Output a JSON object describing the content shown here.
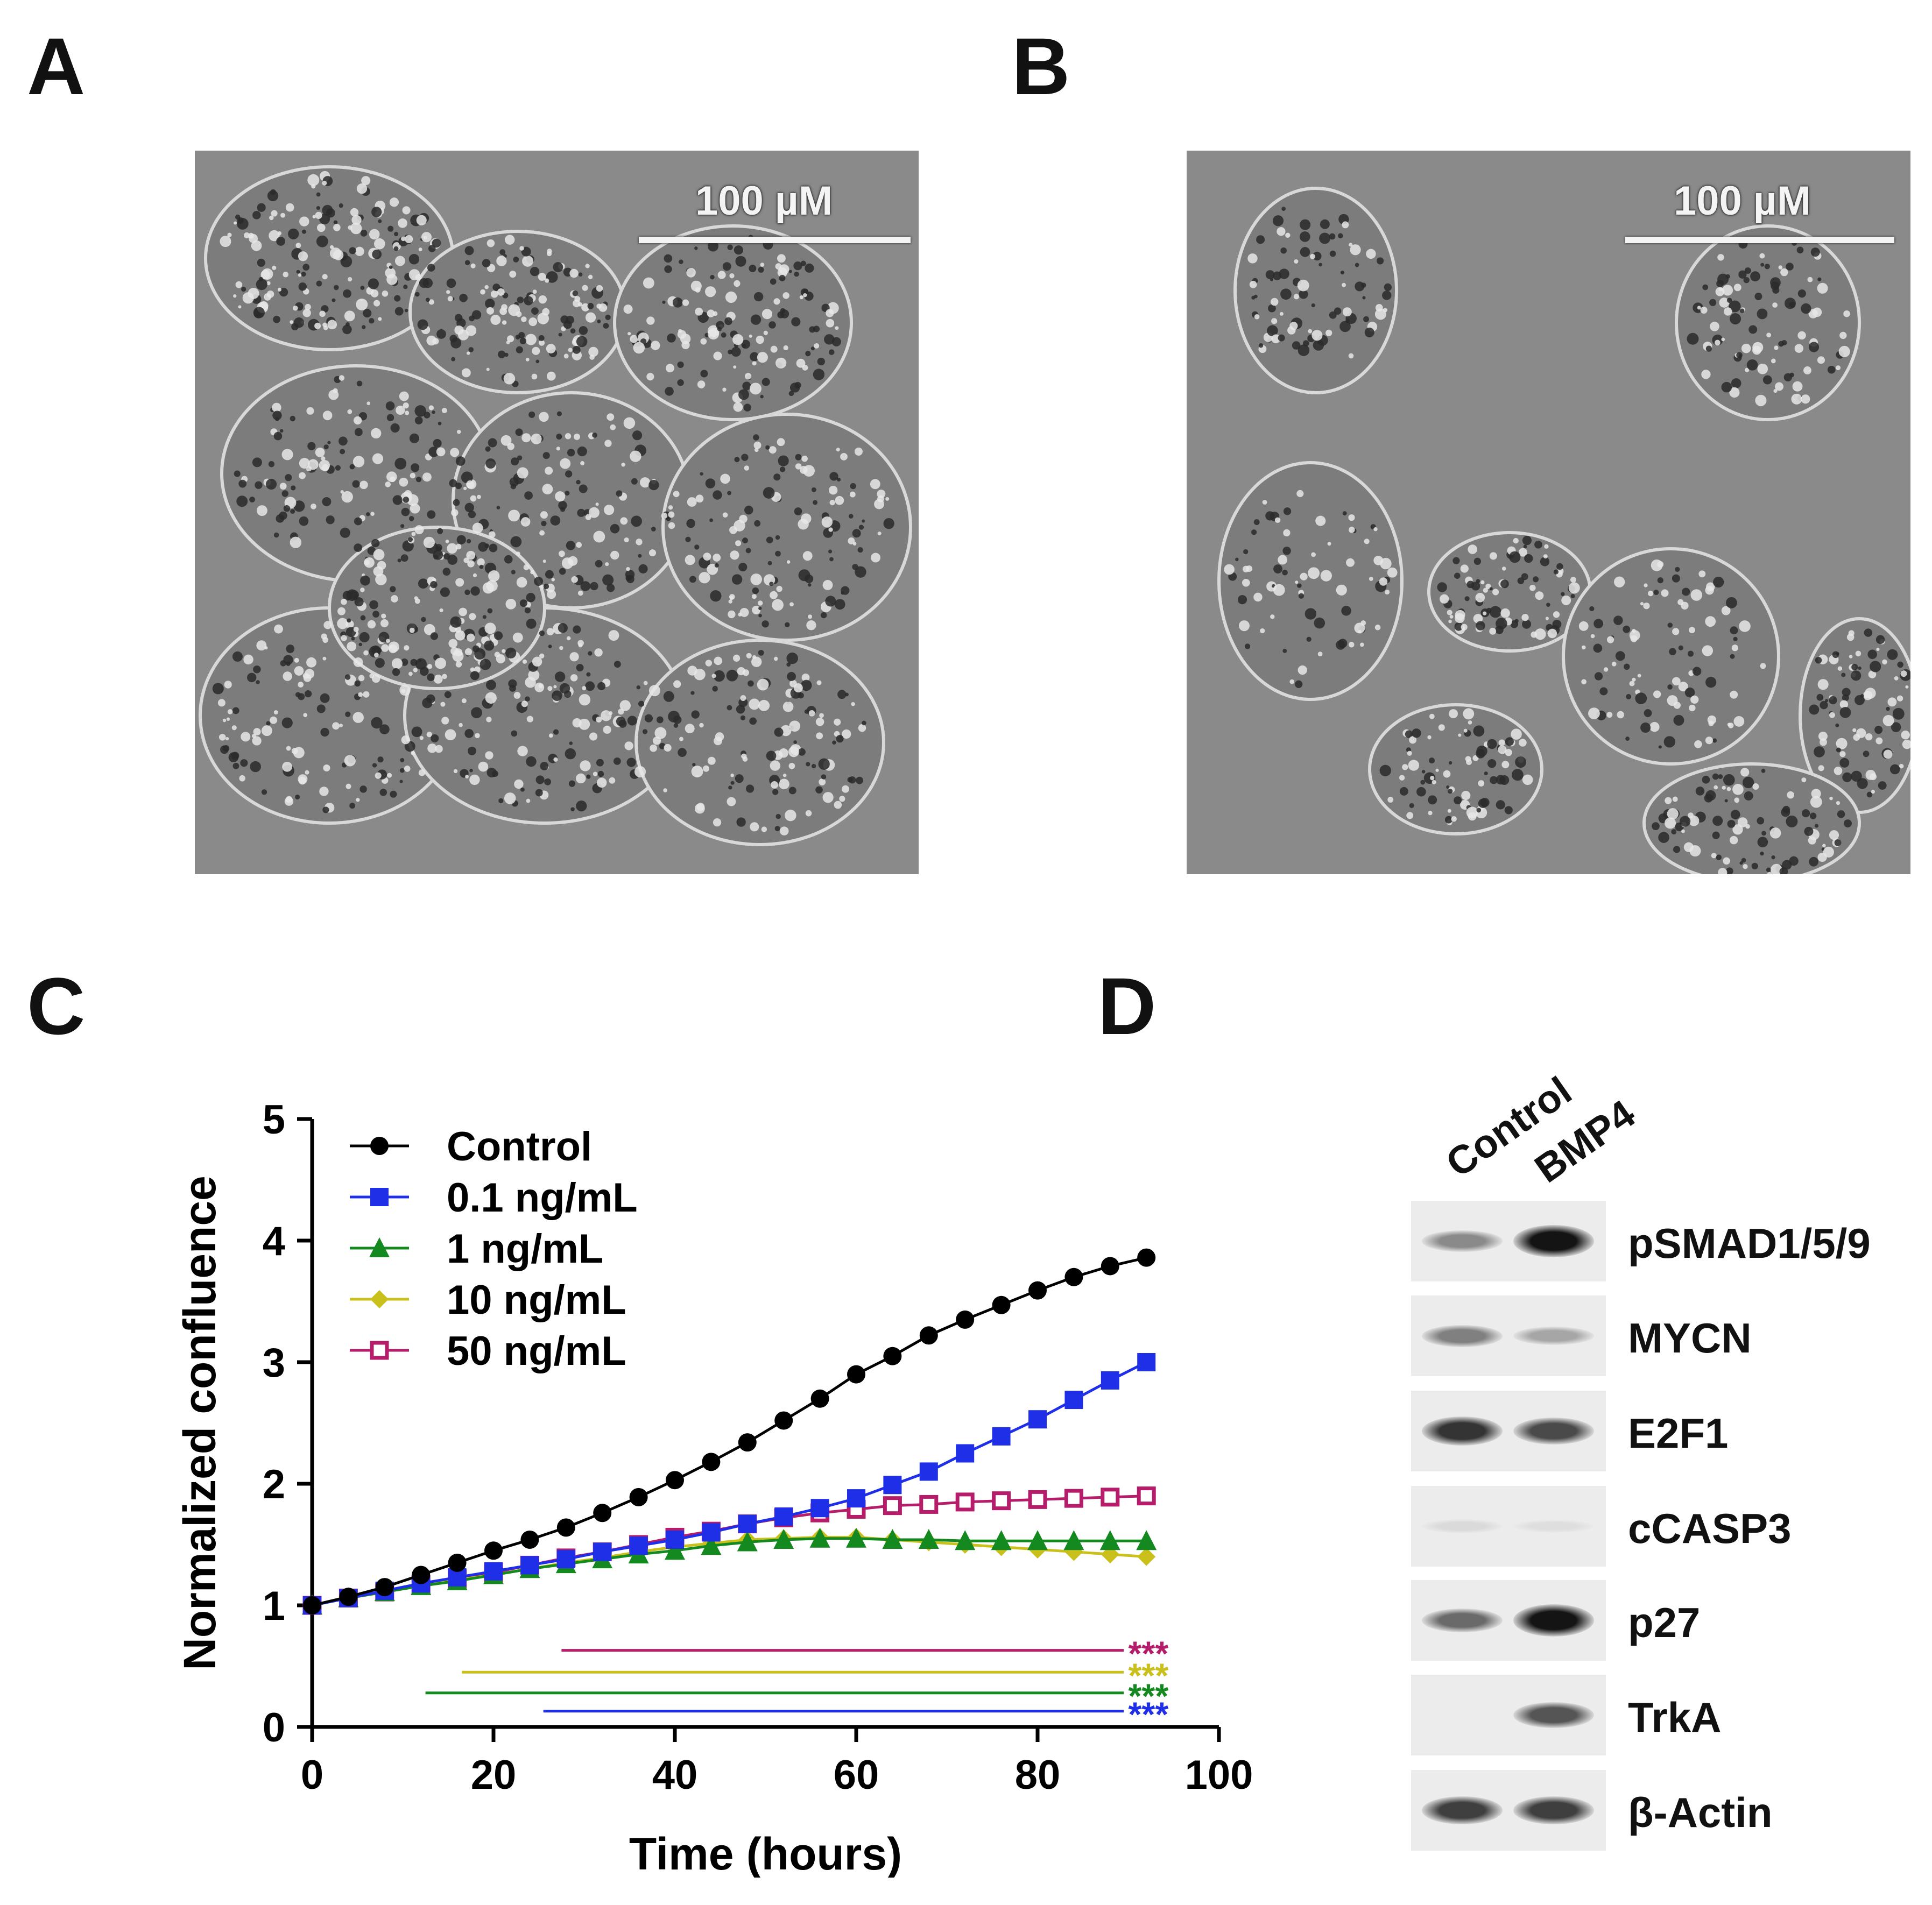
{
  "panels": {
    "a": {
      "letter": "A",
      "scale_label": "100 µM"
    },
    "b": {
      "letter": "B",
      "scale_label": "100 µM"
    },
    "c": {
      "letter": "C"
    },
    "d": {
      "letter": "D"
    }
  },
  "chart_data": {
    "type": "line",
    "xlabel": "Time (hours)",
    "ylabel": "Normalized confluence",
    "xlim": [
      0,
      100
    ],
    "ylim": [
      0,
      5
    ],
    "xticks": [
      0,
      20,
      40,
      60,
      80,
      100
    ],
    "yticks": [
      0,
      1,
      2,
      3,
      4,
      5
    ],
    "grid": false,
    "legend": "top-left",
    "x": [
      0,
      4,
      8,
      12,
      16,
      20,
      24,
      28,
      32,
      36,
      40,
      44,
      48,
      52,
      56,
      60,
      64,
      68,
      72,
      76,
      80,
      84,
      88,
      92
    ],
    "series": [
      {
        "name": "Control",
        "color": "#000000",
        "marker": "circle",
        "values": [
          1.0,
          1.07,
          1.15,
          1.25,
          1.35,
          1.45,
          1.54,
          1.64,
          1.76,
          1.89,
          2.03,
          2.18,
          2.34,
          2.52,
          2.7,
          2.9,
          3.05,
          3.22,
          3.35,
          3.47,
          3.59,
          3.7,
          3.79,
          3.86
        ]
      },
      {
        "name": "0.1 ng/mL",
        "color": "#1f2fe8",
        "marker": "square",
        "values": [
          1.0,
          1.06,
          1.12,
          1.18,
          1.23,
          1.28,
          1.33,
          1.38,
          1.44,
          1.49,
          1.54,
          1.6,
          1.67,
          1.73,
          1.8,
          1.88,
          1.99,
          2.1,
          2.25,
          2.39,
          2.53,
          2.69,
          2.85,
          3.0
        ]
      },
      {
        "name": "1 ng/mL",
        "color": "#13891f",
        "marker": "triangle",
        "values": [
          1.0,
          1.06,
          1.11,
          1.16,
          1.2,
          1.25,
          1.3,
          1.34,
          1.38,
          1.42,
          1.45,
          1.49,
          1.52,
          1.54,
          1.55,
          1.55,
          1.54,
          1.54,
          1.53,
          1.53,
          1.53,
          1.53,
          1.53,
          1.53
        ]
      },
      {
        "name": "10 ng/mL",
        "color": "#c9c01c",
        "marker": "diamond",
        "values": [
          1.0,
          1.06,
          1.11,
          1.16,
          1.21,
          1.25,
          1.3,
          1.35,
          1.39,
          1.44,
          1.48,
          1.51,
          1.54,
          1.55,
          1.56,
          1.56,
          1.54,
          1.52,
          1.5,
          1.48,
          1.46,
          1.44,
          1.42,
          1.4
        ]
      },
      {
        "name": "50 ng/mL",
        "color": "#b51d6b",
        "marker": "open-square",
        "values": [
          1.0,
          1.06,
          1.11,
          1.17,
          1.22,
          1.27,
          1.33,
          1.39,
          1.44,
          1.5,
          1.56,
          1.61,
          1.67,
          1.72,
          1.76,
          1.79,
          1.82,
          1.83,
          1.85,
          1.86,
          1.87,
          1.88,
          1.89,
          1.9
        ]
      }
    ],
    "significance": [
      {
        "label": "***",
        "color": "#b51d6b",
        "y": 0.63,
        "x_start": 27.5,
        "x_end": 93
      },
      {
        "label": "***",
        "color": "#c9c01c",
        "y": 0.45,
        "x_start": 16.5,
        "x_end": 93
      },
      {
        "label": "***",
        "color": "#13891f",
        "y": 0.28,
        "x_start": 12.5,
        "x_end": 93
      },
      {
        "label": "***",
        "color": "#1f2fe8",
        "y": 0.13,
        "x_start": 25.5,
        "x_end": 93
      }
    ]
  },
  "blot": {
    "lanes": [
      "Control",
      "BMP4"
    ],
    "proteins": [
      {
        "name": "pSMAD1/5/9",
        "control": 0.45,
        "bmp4": 1.0
      },
      {
        "name": "MYCN",
        "control": 0.5,
        "bmp4": 0.32
      },
      {
        "name": "E2F1",
        "control": 0.85,
        "bmp4": 0.75
      },
      {
        "name": "cCASP3",
        "control": 0.08,
        "bmp4": 0.06
      },
      {
        "name": "p27",
        "control": 0.6,
        "bmp4": 1.0
      },
      {
        "name": "TrkA",
        "control": 0.0,
        "bmp4": 0.7
      },
      {
        "name": "β-Actin",
        "control": 0.8,
        "bmp4": 0.8
      }
    ]
  }
}
